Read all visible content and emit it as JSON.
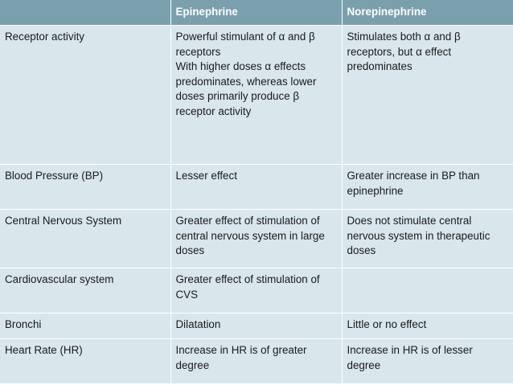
{
  "table": {
    "headers": [
      "",
      "Epinephrine",
      "Norepinephrine"
    ],
    "rows": [
      {
        "parameter": "Receptor activity",
        "epinephrine": "Powerful stimulant of α and β receptors\nWith higher doses α effects predominates, whereas lower doses primarily produce β receptor activity",
        "norepinephrine": "Stimulates both α and β receptors, but α effect predominates"
      },
      {
        "parameter": "Blood Pressure (BP)",
        "epinephrine": "Lesser effect",
        "norepinephrine": "Greater increase in BP than epinephrine"
      },
      {
        "parameter": "Central Nervous System",
        "epinephrine": "Greater effect of stimulation of central nervous system in large doses",
        "norepinephrine": "Does not stimulate central nervous system in therapeutic doses"
      },
      {
        "parameter": "Cardiovascular system",
        "epinephrine": "Greater effect of stimulation of CVS",
        "norepinephrine": ""
      },
      {
        "parameter": "Bronchi",
        "epinephrine": "Dilatation",
        "norepinephrine": "Little or no effect"
      },
      {
        "parameter": "Heart Rate (HR)",
        "epinephrine": "Increase in HR is of greater degree",
        "norepinephrine": "Increase in HR is of lesser degree"
      }
    ]
  },
  "colors": {
    "header_bg": "#7aa0ae",
    "header_text": "#ffffff",
    "cell_bg": "#d9e6ec",
    "cell_text": "#1a1a1a"
  }
}
